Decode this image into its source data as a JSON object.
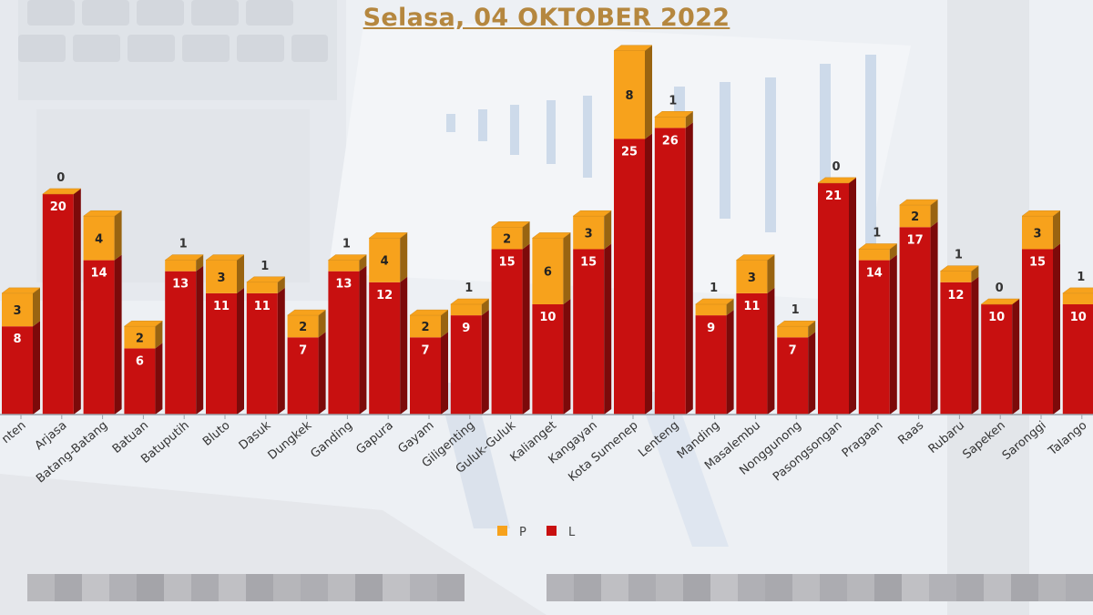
{
  "title": "Selasa, 04 OKTOBER 2022",
  "colors": {
    "P": "#f7a21c",
    "L": "#c81010",
    "title": "#b5873f"
  },
  "chart_data": {
    "type": "bar",
    "stacked": true,
    "title": "Selasa, 04 OKTOBER 2022",
    "categories": [
      "Ambunten",
      "Arjasa",
      "Batang-Batang",
      "Batuan",
      "Batuputih",
      "Bluto",
      "Dasuk",
      "Dungkek",
      "Ganding",
      "Gapura",
      "Gayam",
      "Giligenting",
      "Guluk-Guluk",
      "Kalianget",
      "Kangayan",
      "Kota Sumenep",
      "Lenteng",
      "Manding",
      "Masalembu",
      "Nonggunong",
      "Pasongsongan",
      "Pragaan",
      "Raas",
      "Rubaru",
      "Sapeken",
      "Saronggi",
      "Talango"
    ],
    "category_labels": [
      "nten",
      "Arjasa",
      "Batang-Batang",
      "Batuan",
      "Batuputih",
      "Bluto",
      "Dasuk",
      "Dungkek",
      "Ganding",
      "Gapura",
      "Gayam",
      "Giligenting",
      "Guluk-Guluk",
      "Kalianget",
      "Kangayan",
      "Kota Sumenep",
      "Lenteng",
      "Manding",
      "Masalembu",
      "Nonggunong",
      "Pasongsongan",
      "Pragaan",
      "Raas",
      "Rubaru",
      "Sapeken",
      "Saronggi",
      "Talango"
    ],
    "series": [
      {
        "name": "L",
        "values": [
          8,
          20,
          14,
          6,
          13,
          11,
          11,
          7,
          13,
          12,
          7,
          9,
          15,
          10,
          15,
          25,
          26,
          9,
          11,
          7,
          21,
          14,
          17,
          12,
          10,
          15,
          10
        ]
      },
      {
        "name": "P",
        "values": [
          3,
          0,
          4,
          2,
          1,
          3,
          1,
          2,
          1,
          4,
          2,
          1,
          2,
          6,
          3,
          8,
          1,
          1,
          3,
          1,
          0,
          1,
          2,
          1,
          0,
          3,
          1
        ]
      }
    ],
    "legend": [
      "P",
      "L"
    ],
    "legend_position": "bottom",
    "xlabel": "",
    "ylabel": "",
    "ylim": [
      0,
      35
    ]
  }
}
